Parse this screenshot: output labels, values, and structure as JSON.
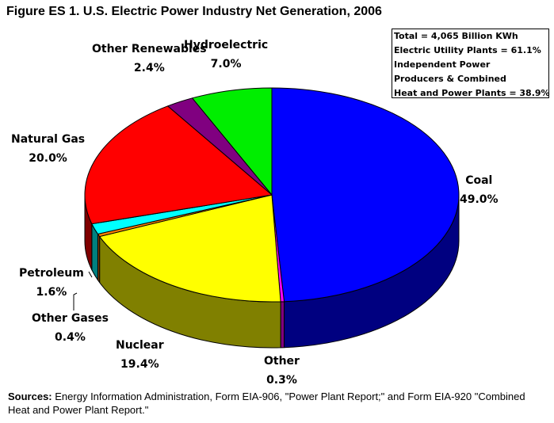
{
  "title": "Figure ES 1. U.S. Electric Power Industry Net Generation, 2006",
  "info_box": [
    "Total = 4,065 Billion KWh",
    "Electric Utility Plants = 61.1%",
    "Independent Power",
    "Producers & Combined",
    "Heat and Power Plants = 38.9%"
  ],
  "sources": {
    "label": "Sources:",
    "text": "Energy Information Administration, Form EIA-906, \"Power Plant Report;\" and Form EIA-920 \"Combined Heat and Power Plant Report.\""
  },
  "chart_data": {
    "type": "pie",
    "title": "Figure ES 1. U.S. Electric Power Industry Net Generation, 2006",
    "slices": [
      {
        "name": "Coal",
        "value": 49.0,
        "label": "49.0%",
        "color": "#0000ff",
        "side_color": "#000080"
      },
      {
        "name": "Other",
        "value": 0.3,
        "label": "0.3%",
        "color": "#ff00ff",
        "side_color": "#800080"
      },
      {
        "name": "Nuclear",
        "value": 19.4,
        "label": "19.4%",
        "color": "#ffff00",
        "side_color": "#808000"
      },
      {
        "name": "Other Gases",
        "value": 0.4,
        "label": "0.4%",
        "color": "#ff8000",
        "side_color": "#804000"
      },
      {
        "name": "Petroleum",
        "value": 1.6,
        "label": "1.6%",
        "color": "#00ffff",
        "side_color": "#008080"
      },
      {
        "name": "Natural Gas",
        "value": 20.0,
        "label": "20.0%",
        "color": "#ff0000",
        "side_color": "#800000"
      },
      {
        "name": "Other Renewables",
        "value": 2.4,
        "label": "2.4%",
        "color": "#800080",
        "side_color": "#400040"
      },
      {
        "name": "Hydroelectric",
        "value": 7.0,
        "label": "7.0%",
        "color": "#00ee00",
        "side_color": "#007700"
      }
    ]
  }
}
